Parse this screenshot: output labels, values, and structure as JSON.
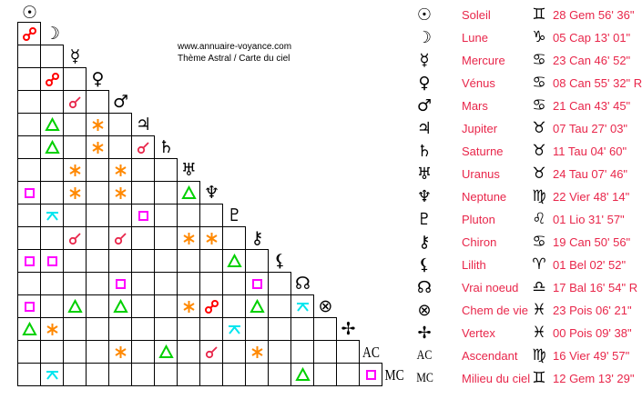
{
  "credit": {
    "site": "www.annuaire-voyance.com",
    "subtitle": "Thème Astral / Carte du ciel"
  },
  "aspect_colors": {
    "opposition": "#ff0000",
    "conjunction": "#e8264a",
    "trine": "#00d000",
    "sextile": "#ff8800",
    "square": "#ff00ff",
    "quincunx": "#00e5ee"
  },
  "text_color": "#e8264a",
  "bodies": [
    {
      "icon": "sun-icon",
      "glyph": "☉",
      "name": "Soleil",
      "sign_icon": "gemini-icon",
      "sign": "♊",
      "position": "28 Gem 56' 36\""
    },
    {
      "icon": "moon-icon",
      "glyph": "☽",
      "name": "Lune",
      "sign_icon": "capricorn-icon",
      "sign": "♑",
      "position": "05 Cap 13' 01\""
    },
    {
      "icon": "mercury-icon",
      "glyph": "☿",
      "name": "Mercure",
      "sign_icon": "cancer-icon",
      "sign": "♋",
      "position": "23 Can 46' 52\""
    },
    {
      "icon": "venus-icon",
      "glyph": "♀",
      "name": "Vénus",
      "sign_icon": "cancer-icon",
      "sign": "♋",
      "position": "08 Can 55' 32\" R"
    },
    {
      "icon": "mars-icon",
      "glyph": "♂",
      "name": "Mars",
      "sign_icon": "cancer-icon",
      "sign": "♋",
      "position": "21 Can 43' 45\""
    },
    {
      "icon": "jupiter-icon",
      "glyph": "♃",
      "name": "Jupiter",
      "sign_icon": "taurus-icon",
      "sign": "♉",
      "position": "07 Tau 27' 03\""
    },
    {
      "icon": "saturn-icon",
      "glyph": "♄",
      "name": "Saturne",
      "sign_icon": "taurus-icon",
      "sign": "♉",
      "position": "11 Tau 04' 60\""
    },
    {
      "icon": "uranus-icon",
      "glyph": "♅",
      "name": "Uranus",
      "sign_icon": "taurus-icon",
      "sign": "♉",
      "position": "24 Tau 07' 46\""
    },
    {
      "icon": "neptune-icon",
      "glyph": "♆",
      "name": "Neptune",
      "sign_icon": "virgo-icon",
      "sign": "♍",
      "position": "22 Vier 48' 14\""
    },
    {
      "icon": "pluto-icon",
      "glyph": "♇",
      "name": "Pluton",
      "sign_icon": "leo-icon",
      "sign": "♌",
      "position": "01 Lio 31' 57\""
    },
    {
      "icon": "chiron-icon",
      "glyph": "⚷",
      "name": "Chiron",
      "sign_icon": "cancer-icon",
      "sign": "♋",
      "position": "19 Can 50' 56\""
    },
    {
      "icon": "lilith-icon",
      "glyph": "⚸",
      "name": "Lilith",
      "sign_icon": "aries-icon",
      "sign": "♈",
      "position": "01 Bel 02' 52\""
    },
    {
      "icon": "node-icon",
      "glyph": "☊",
      "name": "Vrai noeud",
      "sign_icon": "libra-icon",
      "sign": "♎",
      "position": "17 Bal 16' 54\" R"
    },
    {
      "icon": "part-of-fortune-icon",
      "glyph": "⊗",
      "name": "Chem de vie",
      "sign_icon": "pisces-icon",
      "sign": "♓",
      "position": "23 Pois 06' 21\""
    },
    {
      "icon": "vertex-icon",
      "glyph": "✢",
      "name": "Vertex",
      "sign_icon": "pisces-icon",
      "sign": "♓",
      "position": "00 Pois 09' 38\""
    },
    {
      "icon": "ascendant-icon",
      "glyph": "AC",
      "name": "Ascendant",
      "sign_icon": "virgo-icon",
      "sign": "♍",
      "position": "16 Vier 49' 57\""
    },
    {
      "icon": "midheaven-icon",
      "glyph": "MC",
      "name": "Milieu du ciel",
      "sign_icon": "gemini-icon",
      "sign": "♊",
      "position": "12 Gem 13' 29\""
    }
  ],
  "aspects": [
    [
      "Lune",
      "Soleil",
      "opposition"
    ],
    [
      "Vénus",
      "Lune",
      "opposition"
    ],
    [
      "Mars",
      "Mercure",
      "conjunction"
    ],
    [
      "Jupiter",
      "Lune",
      "trine"
    ],
    [
      "Jupiter",
      "Vénus",
      "sextile"
    ],
    [
      "Saturne",
      "Lune",
      "trine"
    ],
    [
      "Saturne",
      "Vénus",
      "sextile"
    ],
    [
      "Saturne",
      "Jupiter",
      "conjunction"
    ],
    [
      "Uranus",
      "Mercure",
      "sextile"
    ],
    [
      "Uranus",
      "Mars",
      "sextile"
    ],
    [
      "Neptune",
      "Soleil",
      "square"
    ],
    [
      "Neptune",
      "Mercure",
      "sextile"
    ],
    [
      "Neptune",
      "Mars",
      "sextile"
    ],
    [
      "Neptune",
      "Uranus",
      "trine"
    ],
    [
      "Pluton",
      "Lune",
      "quincunx"
    ],
    [
      "Pluton",
      "Jupiter",
      "square"
    ],
    [
      "Chiron",
      "Mercure",
      "conjunction"
    ],
    [
      "Chiron",
      "Mars",
      "conjunction"
    ],
    [
      "Chiron",
      "Uranus",
      "sextile"
    ],
    [
      "Chiron",
      "Neptune",
      "sextile"
    ],
    [
      "Lilith",
      "Soleil",
      "square"
    ],
    [
      "Lilith",
      "Lune",
      "square"
    ],
    [
      "Lilith",
      "Pluton",
      "trine"
    ],
    [
      "Vrai noeud",
      "Mars",
      "square"
    ],
    [
      "Vrai noeud",
      "Chiron",
      "square"
    ],
    [
      "Chem de vie",
      "Soleil",
      "square"
    ],
    [
      "Chem de vie",
      "Mercure",
      "trine"
    ],
    [
      "Chem de vie",
      "Mars",
      "trine"
    ],
    [
      "Chem de vie",
      "Uranus",
      "sextile"
    ],
    [
      "Chem de vie",
      "Neptune",
      "opposition"
    ],
    [
      "Chem de vie",
      "Chiron",
      "trine"
    ],
    [
      "Chem de vie",
      "Vrai noeud",
      "quincunx"
    ],
    [
      "Vertex",
      "Soleil",
      "trine"
    ],
    [
      "Vertex",
      "Lune",
      "sextile"
    ],
    [
      "Vertex",
      "Pluton",
      "quincunx"
    ],
    [
      "Ascendant",
      "Mars",
      "sextile"
    ],
    [
      "Ascendant",
      "Saturne",
      "trine"
    ],
    [
      "Ascendant",
      "Neptune",
      "conjunction"
    ],
    [
      "Ascendant",
      "Chiron",
      "sextile"
    ],
    [
      "Milieu du ciel",
      "Lune",
      "quincunx"
    ],
    [
      "Milieu du ciel",
      "Vrai noeud",
      "trine"
    ],
    [
      "Milieu du ciel",
      "Ascendant",
      "square"
    ]
  ]
}
